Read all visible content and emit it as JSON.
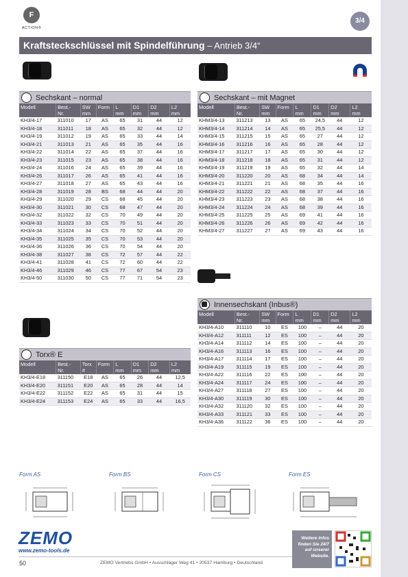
{
  "header": {
    "logo_letter": "F",
    "logo_word": "ACTION®",
    "size_badge": "3/4"
  },
  "title": {
    "main": "Kraftsteckschlüssel mit Spindelführung",
    "sub": " – Antrieb 3/4“"
  },
  "columns_std": [
    "Modell",
    "Best.-\nNr.",
    "SW\nmm",
    "Form",
    "L\nmm",
    "D1\nmm",
    "D2\nmm",
    "L2\nmm"
  ],
  "columns_torx": [
    "Modell",
    "Best.-\nNr.",
    "Torx\n#",
    "Form",
    "L\nmm",
    "D1\nmm",
    "D2\nmm",
    "L2\nmm"
  ],
  "sections": {
    "sechskant_normal": {
      "title": "Sechskant – normal",
      "rows": [
        [
          "KH3/4-17",
          "311010",
          "17",
          "AS",
          "65",
          "31",
          "44",
          "12"
        ],
        [
          "KH3/4-18",
          "311011",
          "18",
          "AS",
          "65",
          "32",
          "44",
          "12"
        ],
        [
          "KH3/4-19",
          "311012",
          "19",
          "AS",
          "65",
          "33",
          "44",
          "14"
        ],
        [
          "KH3/4-21",
          "311013",
          "21",
          "AS",
          "65",
          "35",
          "44",
          "16"
        ],
        [
          "KH3/4-22",
          "311014",
          "22",
          "AS",
          "65",
          "37",
          "44",
          "16"
        ],
        [
          "KH3/4-23",
          "311015",
          "23",
          "AS",
          "65",
          "38",
          "44",
          "16"
        ],
        [
          "KH3/4-24",
          "311016",
          "24",
          "AS",
          "65",
          "39",
          "44",
          "16"
        ],
        [
          "KH3/4-26",
          "311017",
          "26",
          "AS",
          "65",
          "41",
          "44",
          "16"
        ],
        [
          "KH3/4-27",
          "311018",
          "27",
          "AS",
          "65",
          "43",
          "44",
          "16"
        ],
        [
          "KH3/4-28",
          "311019",
          "28",
          "BS",
          "68",
          "44",
          "44",
          "20"
        ],
        [
          "KH3/4-29",
          "311020",
          "29",
          "CS",
          "68",
          "45",
          "44",
          "20"
        ],
        [
          "KH3/4-30",
          "311021",
          "30",
          "CS",
          "68",
          "47",
          "44",
          "20"
        ],
        [
          "KH3/4-32",
          "311022",
          "32",
          "CS",
          "70",
          "49",
          "44",
          "20"
        ],
        [
          "KH3/4-33",
          "311023",
          "33",
          "CS",
          "70",
          "51",
          "44",
          "20"
        ],
        [
          "KH3/4-34",
          "311024",
          "34",
          "CS",
          "70",
          "52",
          "44",
          "20"
        ],
        [
          "KH3/4-35",
          "311025",
          "35",
          "CS",
          "70",
          "53",
          "44",
          "20"
        ],
        [
          "KH3/4-36",
          "311026",
          "36",
          "CS",
          "70",
          "54",
          "44",
          "20"
        ],
        [
          "KH3/4-38",
          "311027",
          "38",
          "CS",
          "72",
          "57",
          "44",
          "22"
        ],
        [
          "KH3/4-41",
          "311028",
          "41",
          "CS",
          "72",
          "60",
          "44",
          "22"
        ],
        [
          "KH3/4-46",
          "311029",
          "46",
          "CS",
          "77",
          "67",
          "54",
          "23"
        ],
        [
          "KH3/4-50",
          "311030",
          "50",
          "CS",
          "77",
          "71",
          "54",
          "23"
        ]
      ]
    },
    "sechskant_magnet": {
      "title": "Sechskant – mit Magnet",
      "rows": [
        [
          "KHM3/4-13",
          "311213",
          "13",
          "AS",
          "65",
          "24,5",
          "44",
          "12"
        ],
        [
          "KHM3/4-14",
          "311214",
          "14",
          "AS",
          "65",
          "25,5",
          "44",
          "12"
        ],
        [
          "KHM3/4-15",
          "311215",
          "15",
          "AS",
          "65",
          "27",
          "44",
          "12"
        ],
        [
          "KHM3/4-16",
          "311216",
          "16",
          "AS",
          "65",
          "28",
          "44",
          "12"
        ],
        [
          "KHM3/4-17",
          "311217",
          "17",
          "AS",
          "65",
          "30",
          "44",
          "12"
        ],
        [
          "KHM3/4-18",
          "311218",
          "18",
          "AS",
          "65",
          "31",
          "44",
          "12"
        ],
        [
          "KHM3/4-19",
          "311219",
          "19",
          "AS",
          "65",
          "32",
          "44",
          "14"
        ],
        [
          "KHM3/4-20",
          "311220",
          "20",
          "AS",
          "68",
          "34",
          "44",
          "14"
        ],
        [
          "KHM3/4-21",
          "311221",
          "21",
          "AS",
          "68",
          "35",
          "44",
          "16"
        ],
        [
          "KHM3/4-22",
          "311222",
          "22",
          "AS",
          "68",
          "37",
          "44",
          "16"
        ],
        [
          "KHM3/4-23",
          "311223",
          "23",
          "AS",
          "68",
          "38",
          "44",
          "16"
        ],
        [
          "KHM3/4-24",
          "311224",
          "24",
          "AS",
          "68",
          "39",
          "44",
          "16"
        ],
        [
          "KHM3/4-25",
          "311225",
          "25",
          "AS",
          "69",
          "41",
          "44",
          "16"
        ],
        [
          "KHM3/4-26",
          "311226",
          "26",
          "AS",
          "69",
          "42",
          "44",
          "16"
        ],
        [
          "KHM3/4-27",
          "311227",
          "27",
          "AS",
          "69",
          "43",
          "44",
          "16"
        ]
      ]
    },
    "torx": {
      "title": "Torx® E",
      "rows": [
        [
          "KH3/4-E18",
          "311150",
          "E18",
          "AS",
          "65",
          "26",
          "44",
          "12,5"
        ],
        [
          "KH3/4-E20",
          "311151",
          "E20",
          "AS",
          "65",
          "28",
          "44",
          "14"
        ],
        [
          "KH3/4-E22",
          "311152",
          "E22",
          "AS",
          "65",
          "31",
          "44",
          "15"
        ],
        [
          "KH3/4-E24",
          "311153",
          "E24",
          "AS",
          "65",
          "33",
          "44",
          "16,5"
        ]
      ]
    },
    "innensechskant": {
      "title": "Innensechskant (Inbus®)",
      "rows": [
        [
          "KH3/4-A10",
          "311110",
          "10",
          "ES",
          "100",
          "–",
          "44",
          "20"
        ],
        [
          "KH3/4-A12",
          "311111",
          "12",
          "ES",
          "100",
          "–",
          "44",
          "20"
        ],
        [
          "KH3/4-A14",
          "311112",
          "14",
          "ES",
          "100",
          "–",
          "44",
          "20"
        ],
        [
          "KH3/4-A16",
          "311113",
          "16",
          "ES",
          "100",
          "–",
          "44",
          "20"
        ],
        [
          "KH3/4-A17",
          "311114",
          "17",
          "ES",
          "100",
          "–",
          "44",
          "20"
        ],
        [
          "KH3/4-A19",
          "311115",
          "19",
          "ES",
          "100",
          "–",
          "44",
          "20"
        ],
        [
          "KH3/4-A22",
          "311116",
          "22",
          "ES",
          "100",
          "–",
          "44",
          "20"
        ],
        [
          "KH3/4-A24",
          "311117",
          "24",
          "ES",
          "100",
          "–",
          "44",
          "20"
        ],
        [
          "KH3/4-A27",
          "311118",
          "27",
          "ES",
          "100",
          "–",
          "44",
          "20"
        ],
        [
          "KH3/4-A30",
          "311119",
          "30",
          "ES",
          "100",
          "–",
          "44",
          "20"
        ],
        [
          "KH3/4-A32",
          "311120",
          "32",
          "ES",
          "100",
          "–",
          "44",
          "20"
        ],
        [
          "KH3/4-A33",
          "311121",
          "33",
          "ES",
          "100",
          "–",
          "44",
          "20"
        ],
        [
          "KH3/4-A36",
          "311122",
          "36",
          "ES",
          "100",
          "–",
          "44",
          "20"
        ]
      ]
    }
  },
  "forms": {
    "as": "Form AS",
    "bs": "Form BS",
    "cs": "Form CS",
    "es": "Form ES"
  },
  "footer": {
    "brand": "ZEMO",
    "url": "www.zemo-tools.de",
    "page": "50",
    "address": "ZEMO Vertriebs GmbH  •  Ausschläger Weg 41  •  20537 Hamburg  •  Deutschland",
    "info_lines": [
      "Weitere Infos",
      "finden Sie 24/7",
      "auf unserer",
      "Website."
    ]
  }
}
